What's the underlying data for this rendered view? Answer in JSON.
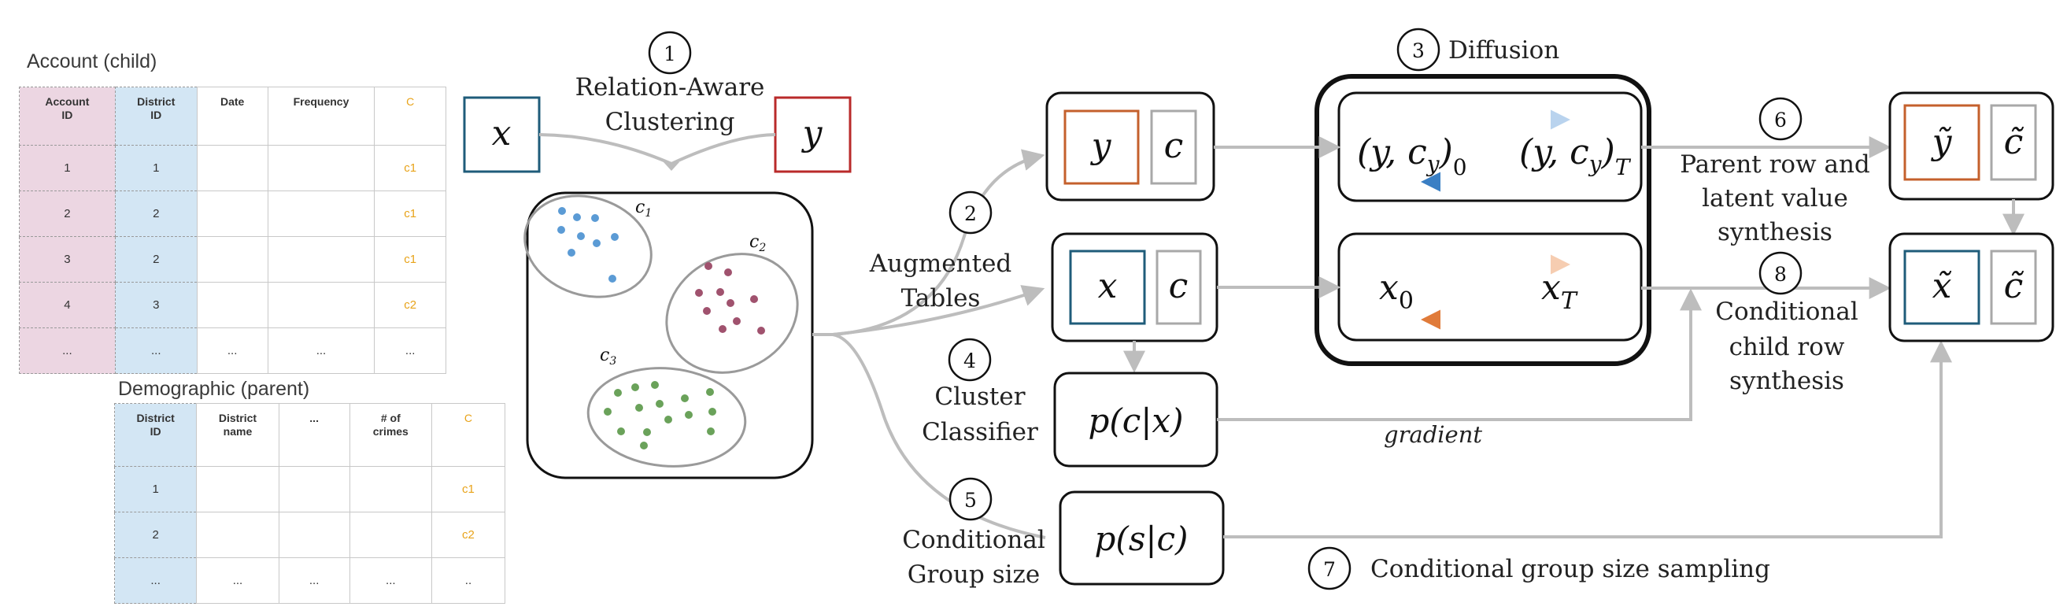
{
  "child_table": {
    "title": "Account (child)",
    "headers": [
      "Account\nID",
      "District\nID",
      "Date",
      "Frequency",
      "C"
    ],
    "rows": [
      [
        "1",
        "1",
        "",
        "",
        "c1"
      ],
      [
        "2",
        "2",
        "",
        "",
        "c1"
      ],
      [
        "3",
        "2",
        "",
        "",
        "c1"
      ],
      [
        "4",
        "3",
        "",
        "",
        "c2"
      ],
      [
        "...",
        "...",
        "...",
        "...",
        "..."
      ]
    ]
  },
  "parent_table": {
    "title": "Demographic (parent)",
    "headers": [
      "District\nID",
      "District\nname",
      "...",
      "# of\ncrimes",
      "C"
    ],
    "rows": [
      [
        "1",
        "",
        "",
        "",
        "c1"
      ],
      [
        "2",
        "",
        "",
        "",
        "c2"
      ],
      [
        "...",
        "...",
        "...",
        "...",
        ".."
      ]
    ]
  },
  "steps": {
    "s1": {
      "num": "1",
      "lines": [
        "Relation-Aware",
        "Clustering"
      ]
    },
    "s2": {
      "num": "2",
      "lines": [
        "Augmented",
        "Tables"
      ]
    },
    "s3": {
      "num": "3",
      "title": "Diffusion"
    },
    "s4": {
      "num": "4",
      "lines": [
        "Cluster",
        "Classifier"
      ]
    },
    "s5": {
      "num": "5",
      "lines": [
        "Conditional",
        "Group size"
      ]
    },
    "s6": {
      "num": "6",
      "lines": [
        "Parent row and",
        "latent value",
        "synthesis"
      ]
    },
    "s7": {
      "num": "7",
      "title": "Conditional group size sampling"
    },
    "s8": {
      "num": "8",
      "lines": [
        "Conditional",
        "child row",
        "synthesis"
      ]
    }
  },
  "symbols": {
    "x": "x",
    "y": "y",
    "c": "c",
    "y_tilde": "ỹ",
    "c_tilde": "c̃",
    "x_tilde": "x̃",
    "x0": "x",
    "x0_sub": "0",
    "xT": "x",
    "xT_sub": "T",
    "pc": "p(c|x)",
    "ps": "p(s|c)",
    "y_cy": "(y, c",
    "y_cy_sub": "y",
    "sub_0": "0",
    "sub_T": "T"
  },
  "clusters": {
    "c1": "c",
    "c1_sub": "1",
    "c2": "c",
    "c2_sub": "2",
    "c3": "c",
    "c3_sub": "3"
  },
  "gradient_label": "gradient",
  "colors": {
    "x_box": "#1f5c7a",
    "y_box": "#b92a2a",
    "y_box_right": "#c4602c",
    "c_box": "#a8a8a8",
    "cluster_blue": "#5b9bd5",
    "cluster_red": "#a0526e",
    "cluster_green": "#6aa25a",
    "arrow_blue": "#3a7fc4",
    "arrow_orange": "#e07b3a",
    "connector": "#bdbdbd",
    "pink": "#ecd6e2",
    "light_blue": "#d3e6f4",
    "orange_text": "#e8a319"
  }
}
